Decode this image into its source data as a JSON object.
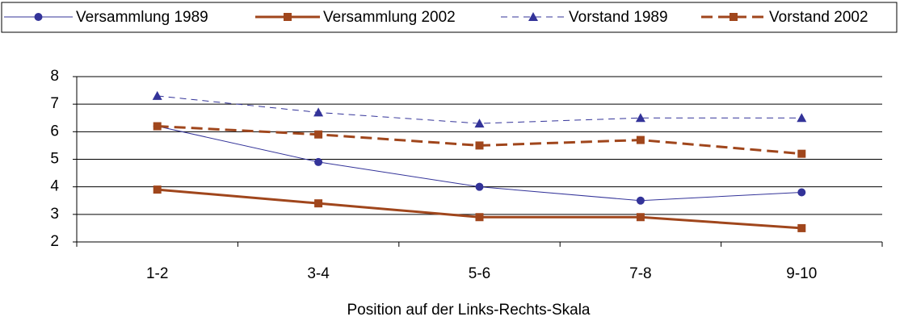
{
  "chart_data": {
    "type": "line",
    "x_label": "Position auf der Links-Rechts-Skala",
    "categories": [
      "1-2",
      "3-4",
      "5-6",
      "7-8",
      "9-10"
    ],
    "series": [
      {
        "name": "Versammlung 1989",
        "color": "#333399",
        "marker": "circle",
        "dash": false,
        "width": 1,
        "values": [
          6.2,
          4.9,
          4.0,
          3.5,
          3.8
        ]
      },
      {
        "name": "Versammlung 2002",
        "color": "#a0461c",
        "marker": "square",
        "dash": false,
        "width": 3,
        "values": [
          3.9,
          3.4,
          2.9,
          2.9,
          2.5
        ]
      },
      {
        "name": "Vorstand 1989",
        "color": "#333399",
        "marker": "triangle",
        "dash": true,
        "width": 1,
        "values": [
          7.3,
          6.7,
          6.3,
          6.5,
          6.5
        ]
      },
      {
        "name": "Vorstand 2002",
        "color": "#a0461c",
        "marker": "square",
        "dash": true,
        "width": 3,
        "values": [
          6.2,
          5.9,
          5.5,
          5.7,
          5.2
        ]
      }
    ],
    "ylim": [
      2,
      8
    ],
    "yticks": [
      2,
      3,
      4,
      5,
      6,
      7,
      8
    ],
    "grid": true,
    "legend": "top"
  }
}
